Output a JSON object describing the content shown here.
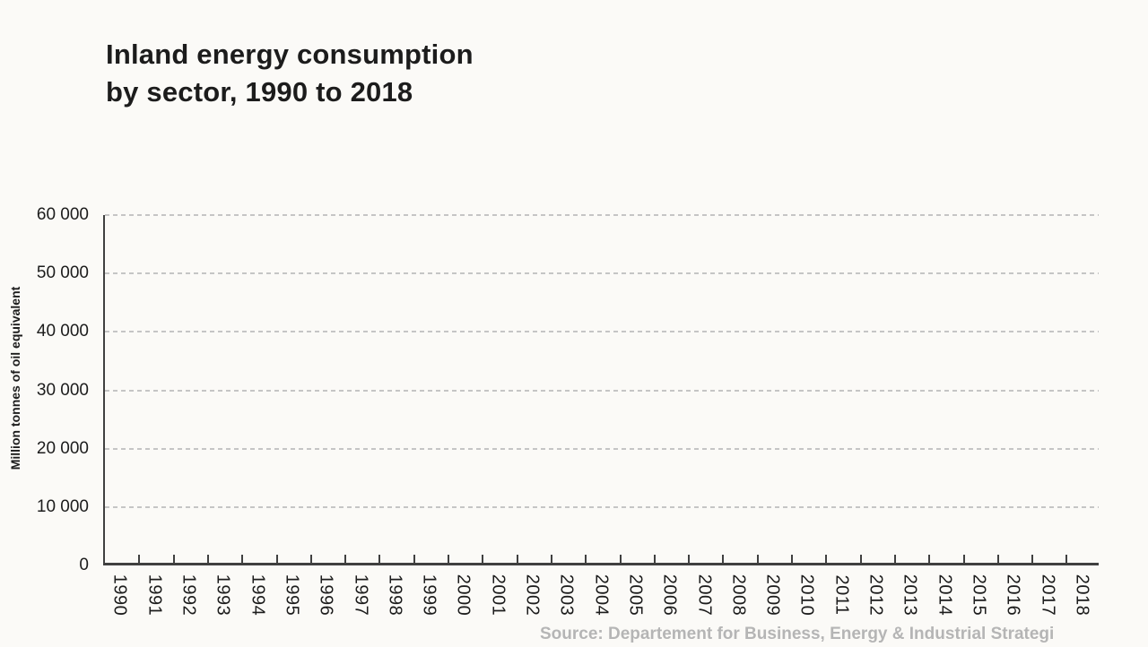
{
  "title": {
    "line1": "Inland energy consumption",
    "line2": "by sector, 1990 to 2018"
  },
  "y_axis_title": "Million tonnes of oil equivalent",
  "source": "Source: Departement for Business, Energy & Industrial Strategi",
  "colors": {
    "background": "#fbfaf7",
    "ink": "#1c1c1c",
    "axis": "#404040",
    "grid": "#c5c5c5",
    "muted": "#b5b5b5"
  },
  "chart_data": {
    "type": "line",
    "title": "Inland energy consumption by sector, 1990 to 2018",
    "xlabel": "",
    "ylabel": "Million tonnes of oil equivalent",
    "x": [
      "1990",
      "1991",
      "1992",
      "1993",
      "1994",
      "1995",
      "1996",
      "1997",
      "1998",
      "1999",
      "2000",
      "2001",
      "2002",
      "2003",
      "2004",
      "2005",
      "2006",
      "2007",
      "2008",
      "2009",
      "2010",
      "2011",
      "2012",
      "2013",
      "2014",
      "2015",
      "2016",
      "2017",
      "2018"
    ],
    "yticks": [
      {
        "value": 0,
        "label": "0"
      },
      {
        "value": 10000,
        "label": "10 000"
      },
      {
        "value": 20000,
        "label": "20 000"
      },
      {
        "value": 30000,
        "label": "30 000"
      },
      {
        "value": 40000,
        "label": "40 000"
      },
      {
        "value": 50000,
        "label": "50 000"
      },
      {
        "value": 60000,
        "label": "60 000"
      }
    ],
    "ylim": [
      0,
      60000
    ],
    "grid": "horizontal-dashed",
    "legend_position": "none",
    "series": []
  }
}
